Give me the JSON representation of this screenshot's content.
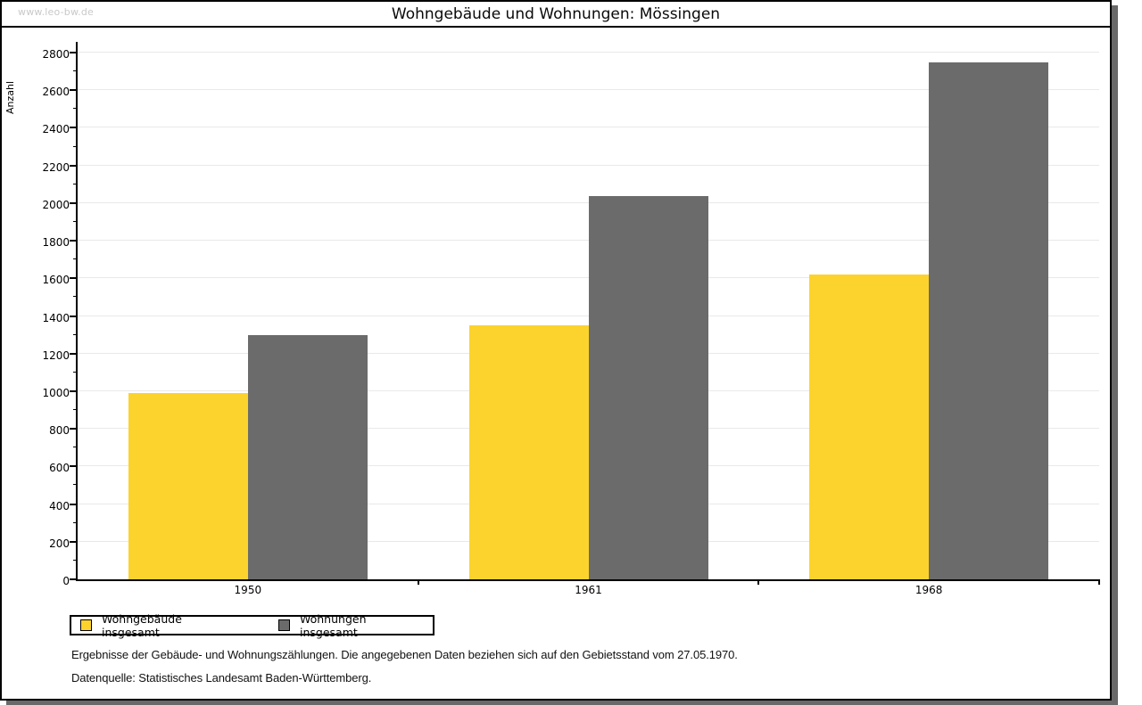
{
  "page": {
    "watermark": "www.leo-bw.de"
  },
  "chart_data": {
    "type": "bar",
    "title": "Wohngebäude und Wohnungen: Mössingen",
    "xlabel": "",
    "ylabel": "Anzahl",
    "categories": [
      "1950",
      "1961",
      "1968"
    ],
    "series": [
      {
        "name": "Wohngebäude insgesamt",
        "color": "#FCD32C",
        "values": [
          990,
          1350,
          1620
        ]
      },
      {
        "name": "Wohnungen insgesamt",
        "color": "#6B6B6B",
        "values": [
          1300,
          2035,
          2750
        ]
      }
    ],
    "ylim": [
      0,
      2800
    ],
    "y_major_step": 200,
    "y_minor_step": 100,
    "grid": true,
    "legend_position": "bottom-left"
  },
  "footer": {
    "note": "Ergebnisse der Gebäude- und Wohnungszählungen. Die angegebenen Daten beziehen sich auf den Gebietsstand vom 27.05.1970.",
    "source": "Datenquelle: Statistisches Landesamt Baden-Württemberg."
  },
  "colors": {
    "series_wohngebaeude": "#FCD32C",
    "series_wohnungen": "#6B6B6B",
    "gridline": "#e9e9e9",
    "frame_border": "#000000",
    "shadow": "#696969",
    "watermark": "#c9c9c9"
  }
}
